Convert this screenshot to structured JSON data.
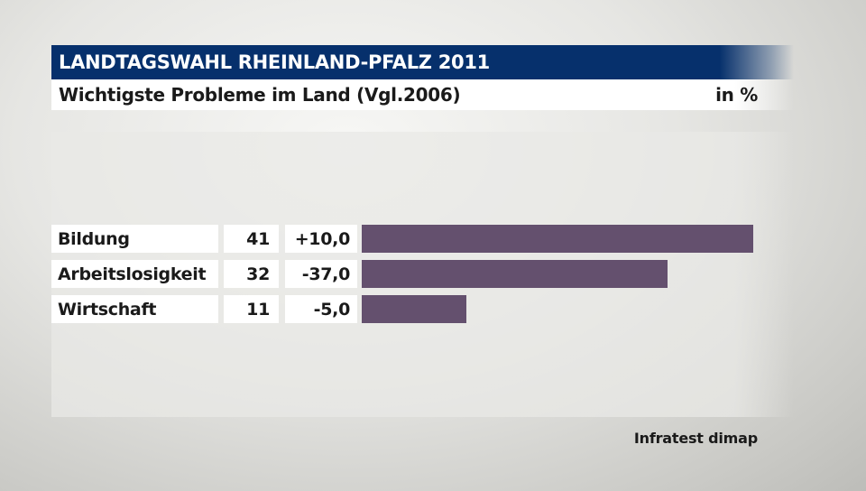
{
  "header": {
    "title": "LANDTAGSWAHL RHEINLAND-PFALZ 2011",
    "subtitle": "Wichtigste Probleme im Land (Vgl.2006)",
    "unit": "in %"
  },
  "footer": {
    "source": "Infratest dimap"
  },
  "colors": {
    "title_bg": "#06306c",
    "bar": "#64506e"
  },
  "chart_data": {
    "type": "bar",
    "orientation": "horizontal",
    "title": "Wichtigste Probleme im Land (Vgl.2006)",
    "categories": [
      "Bildung",
      "Arbeitslosigkeit",
      "Wirtschaft"
    ],
    "values": [
      41,
      32,
      11
    ],
    "changes": [
      "+10,0",
      "-37,0",
      "-5,0"
    ],
    "xlim": [
      0,
      41
    ]
  }
}
